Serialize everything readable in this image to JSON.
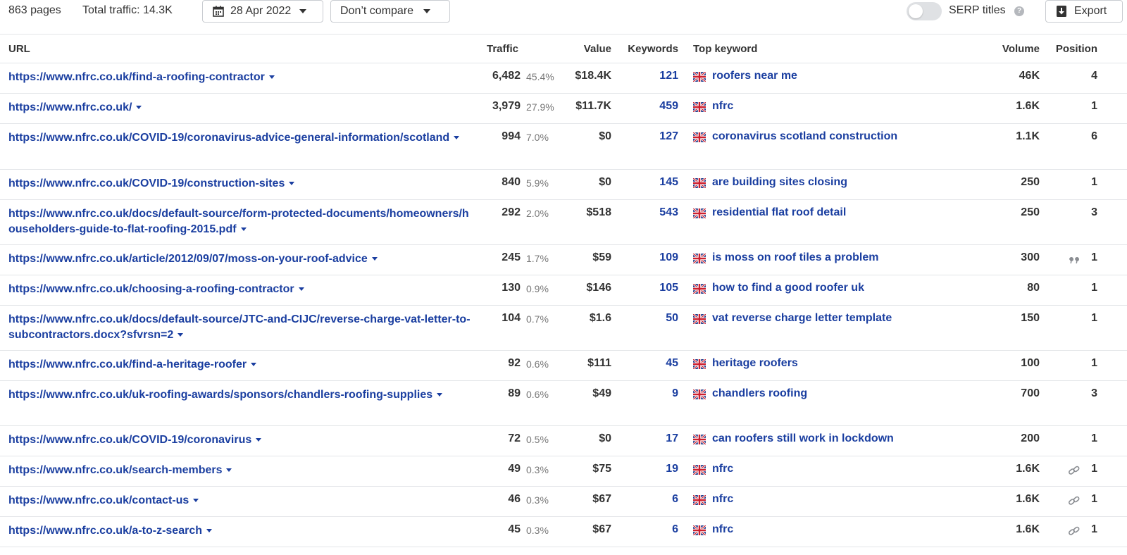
{
  "toolbar": {
    "pages": "863 pages",
    "total_traffic": "Total traffic: 14.3K",
    "date": "28 Apr 2022",
    "compare": "Don’t compare",
    "serp_titles": "SERP titles",
    "serp_titles_enabled": false,
    "help": "?",
    "export": "Export"
  },
  "columns": {
    "url": "URL",
    "traffic": "Traffic",
    "value": "Value",
    "keywords": "Keywords",
    "top_keyword": "Top keyword",
    "volume": "Volume",
    "position": "Position"
  },
  "rows": [
    {
      "url": "https://www.nfrc.co.uk/find-a-roofing-contractor",
      "traffic": "6,482",
      "share": "45.4%",
      "value": "$18.4K",
      "keywords": "121",
      "top_keyword": "roofers near me",
      "volume": "46K",
      "position": "4",
      "feature_icon": ""
    },
    {
      "url": "https://www.nfrc.co.uk/",
      "traffic": "3,979",
      "share": "27.9%",
      "value": "$11.7K",
      "keywords": "459",
      "top_keyword": "nfrc",
      "volume": "1.6K",
      "position": "1",
      "feature_icon": ""
    },
    {
      "url": "https://www.nfrc.co.uk/COVID-19/coronavirus-advice-general-information/scotland",
      "traffic": "994",
      "share": "7.0%",
      "value": "$0",
      "keywords": "127",
      "top_keyword": "coronavirus scotland construction",
      "volume": "1.1K",
      "position": "6",
      "feature_icon": ""
    },
    {
      "url": "https://www.nfrc.co.uk/COVID-19/construction-sites",
      "traffic": "840",
      "share": "5.9%",
      "value": "$0",
      "keywords": "145",
      "top_keyword": "are building sites closing",
      "volume": "250",
      "position": "1",
      "feature_icon": ""
    },
    {
      "url": "https://www.nfrc.co.uk/docs/default-source/form-protected-documents/homeowners/householders-guide-to-flat-roofing-2015.pdf",
      "traffic": "292",
      "share": "2.0%",
      "value": "$518",
      "keywords": "543",
      "top_keyword": "residential flat roof detail",
      "volume": "250",
      "position": "3",
      "feature_icon": ""
    },
    {
      "url": "https://www.nfrc.co.uk/article/2012/09/07/moss-on-your-roof-advice",
      "traffic": "245",
      "share": "1.7%",
      "value": "$59",
      "keywords": "109",
      "top_keyword": "is moss on roof tiles a problem",
      "volume": "300",
      "position": "1",
      "feature_icon": "quote-icon"
    },
    {
      "url": "https://www.nfrc.co.uk/choosing-a-roofing-contractor",
      "traffic": "130",
      "share": "0.9%",
      "value": "$146",
      "keywords": "105",
      "top_keyword": "how to find a good roofer uk",
      "volume": "80",
      "position": "1",
      "feature_icon": ""
    },
    {
      "url": "https://www.nfrc.co.uk/docs/default-source/JTC-and-CIJC/reverse-charge-vat-letter-to-subcontractors.docx?sfvrsn=2",
      "traffic": "104",
      "share": "0.7%",
      "value": "$1.6",
      "keywords": "50",
      "top_keyword": "vat reverse charge letter template",
      "volume": "150",
      "position": "1",
      "feature_icon": ""
    },
    {
      "url": "https://www.nfrc.co.uk/find-a-heritage-roofer",
      "traffic": "92",
      "share": "0.6%",
      "value": "$111",
      "keywords": "45",
      "top_keyword": "heritage roofers",
      "volume": "100",
      "position": "1",
      "feature_icon": ""
    },
    {
      "url": "https://www.nfrc.co.uk/uk-roofing-awards/sponsors/chandlers-roofing-supplies",
      "traffic": "89",
      "share": "0.6%",
      "value": "$49",
      "keywords": "9",
      "top_keyword": "chandlers roofing",
      "volume": "700",
      "position": "3",
      "feature_icon": ""
    },
    {
      "url": "https://www.nfrc.co.uk/COVID-19/coronavirus",
      "traffic": "72",
      "share": "0.5%",
      "value": "$0",
      "keywords": "17",
      "top_keyword": "can roofers still work in lockdown",
      "volume": "200",
      "position": "1",
      "feature_icon": ""
    },
    {
      "url": "https://www.nfrc.co.uk/search-members",
      "traffic": "49",
      "share": "0.3%",
      "value": "$75",
      "keywords": "19",
      "top_keyword": "nfrc",
      "volume": "1.6K",
      "position": "1",
      "feature_icon": "link-icon"
    },
    {
      "url": "https://www.nfrc.co.uk/contact-us",
      "traffic": "46",
      "share": "0.3%",
      "value": "$67",
      "keywords": "6",
      "top_keyword": "nfrc",
      "volume": "1.6K",
      "position": "1",
      "feature_icon": "link-icon"
    },
    {
      "url": "https://www.nfrc.co.uk/a-to-z-search",
      "traffic": "45",
      "share": "0.3%",
      "value": "$67",
      "keywords": "6",
      "top_keyword": "nfrc",
      "volume": "1.6K",
      "position": "1",
      "feature_icon": "link-icon"
    }
  ],
  "flag_icon": "uk-flag-icon",
  "colors": {
    "link": "#1a3ea0",
    "text": "#333333",
    "muted": "#777777",
    "border": "#e3e5e8"
  }
}
